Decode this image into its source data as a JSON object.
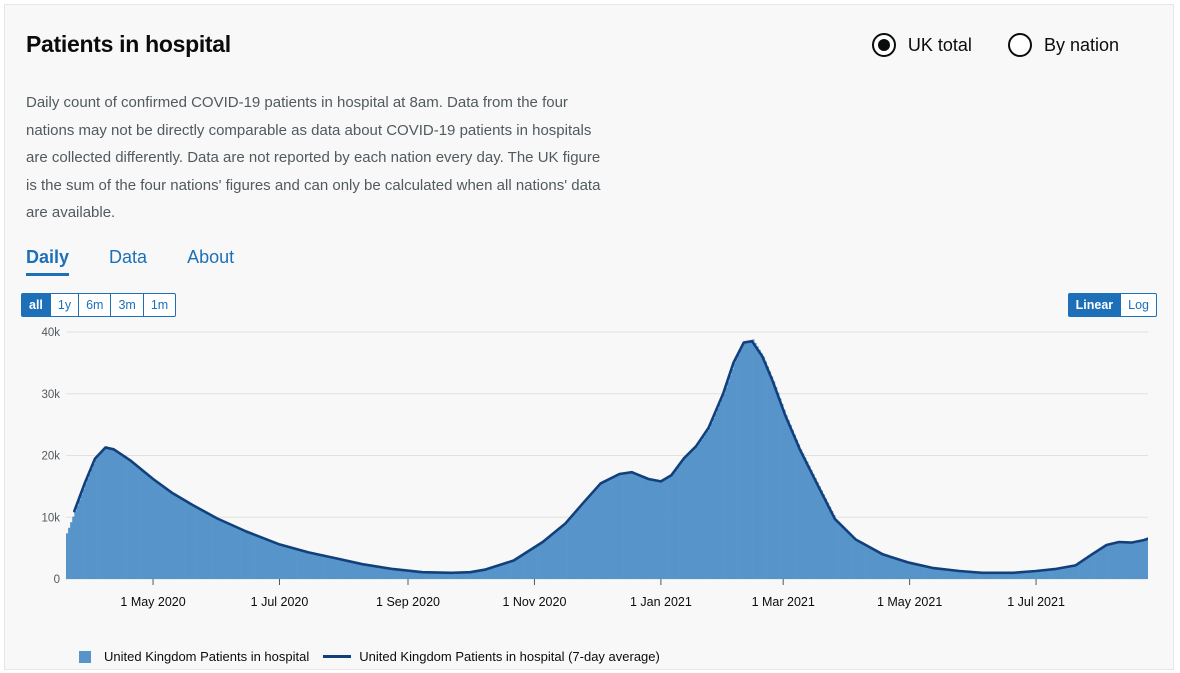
{
  "header": {
    "title": "Patients in hospital"
  },
  "radios": [
    {
      "label": "UK total",
      "selected": true
    },
    {
      "label": "By nation",
      "selected": false
    }
  ],
  "description": "Daily count of confirmed COVID-19 patients in hospital at 8am. Data from the four nations may not be directly comparable as data about COVID-19 patients in hospitals are collected differently. Data are not reported by each nation every day. The UK figure is the sum of the four nations' figures and can only be calculated when all nations' data are available.",
  "tabs": [
    {
      "label": "Daily",
      "active": true
    },
    {
      "label": "Data",
      "active": false
    },
    {
      "label": "About",
      "active": false
    }
  ],
  "range_buttons": [
    {
      "label": "all",
      "active": true
    },
    {
      "label": "1y",
      "active": false
    },
    {
      "label": "6m",
      "active": false
    },
    {
      "label": "3m",
      "active": false
    },
    {
      "label": "1m",
      "active": false
    }
  ],
  "scale_buttons": [
    {
      "label": "Linear",
      "active": true
    },
    {
      "label": "Log",
      "active": false
    }
  ],
  "colors": {
    "bar": "#5694ca",
    "line": "#12407c",
    "accent": "#1d70b8"
  },
  "chart_data": {
    "type": "bar",
    "title": "",
    "xlabel": "",
    "ylabel": "",
    "x_range": [
      "2020-03-20",
      "2021-08-24"
    ],
    "ylim": [
      0,
      40000
    ],
    "y_ticks": [
      {
        "value": 0,
        "label": "0"
      },
      {
        "value": 10000,
        "label": "10k"
      },
      {
        "value": 20000,
        "label": "20k"
      },
      {
        "value": 30000,
        "label": "30k"
      },
      {
        "value": 40000,
        "label": "40k"
      }
    ],
    "x_ticks": [
      {
        "date": "2020-05-01",
        "label": "1 May 2020"
      },
      {
        "date": "2020-07-01",
        "label": "1 Jul 2020"
      },
      {
        "date": "2020-09-01",
        "label": "1 Sep 2020"
      },
      {
        "date": "2020-11-01",
        "label": "1 Nov 2020"
      },
      {
        "date": "2021-01-01",
        "label": "1 Jan 2021"
      },
      {
        "date": "2021-03-01",
        "label": "1 Mar 2021"
      },
      {
        "date": "2021-05-01",
        "label": "1 May 2021"
      },
      {
        "date": "2021-07-01",
        "label": "1 Jul 2021"
      }
    ],
    "grid": true,
    "legend_position": "bottom-left",
    "series": [
      {
        "name": "United Kingdom Patients in hospital",
        "type": "bar",
        "points": [
          [
            "2020-03-20",
            7400
          ],
          [
            "2020-03-24",
            11000
          ],
          [
            "2020-03-29",
            15500
          ],
          [
            "2020-04-03",
            19500
          ],
          [
            "2020-04-08",
            21500
          ],
          [
            "2020-04-12",
            21000
          ],
          [
            "2020-04-20",
            19200
          ],
          [
            "2020-05-01",
            16200
          ],
          [
            "2020-05-10",
            14000
          ],
          [
            "2020-05-20",
            12000
          ],
          [
            "2020-06-01",
            9800
          ],
          [
            "2020-06-15",
            7700
          ],
          [
            "2020-07-01",
            5600
          ],
          [
            "2020-07-15",
            4300
          ],
          [
            "2020-07-29",
            3300
          ],
          [
            "2020-08-10",
            2400
          ],
          [
            "2020-08-25",
            1600
          ],
          [
            "2020-09-08",
            1100
          ],
          [
            "2020-09-22",
            1000
          ],
          [
            "2020-10-01",
            1100
          ],
          [
            "2020-10-08",
            1500
          ],
          [
            "2020-10-22",
            3000
          ],
          [
            "2020-11-05",
            6000
          ],
          [
            "2020-11-16",
            9000
          ],
          [
            "2020-11-25",
            12500
          ],
          [
            "2020-12-03",
            15500
          ],
          [
            "2020-12-12",
            17000
          ],
          [
            "2020-12-18",
            17300
          ],
          [
            "2020-12-26",
            16200
          ],
          [
            "2021-01-01",
            15800
          ],
          [
            "2021-01-06",
            16800
          ],
          [
            "2021-01-12",
            19500
          ],
          [
            "2021-01-18",
            21500
          ],
          [
            "2021-01-24",
            24500
          ],
          [
            "2021-01-31",
            30000
          ],
          [
            "2021-02-05",
            35000
          ],
          [
            "2021-02-10",
            38500
          ],
          [
            "2021-02-14",
            38800
          ],
          [
            "2021-02-19",
            36000
          ],
          [
            "2021-02-24",
            32000
          ],
          [
            "2021-03-02",
            26500
          ],
          [
            "2021-03-09",
            21000
          ],
          [
            "2021-03-18",
            15000
          ],
          [
            "2021-03-26",
            9700
          ],
          [
            "2021-04-05",
            6400
          ],
          [
            "2021-04-18",
            4000
          ],
          [
            "2021-04-30",
            2700
          ],
          [
            "2021-05-12",
            1800
          ],
          [
            "2021-05-25",
            1300
          ],
          [
            "2021-06-05",
            1000
          ],
          [
            "2021-06-20",
            1000
          ],
          [
            "2021-07-01",
            1300
          ],
          [
            "2021-07-10",
            1600
          ],
          [
            "2021-07-20",
            2200
          ],
          [
            "2021-07-28",
            4000
          ],
          [
            "2021-08-04",
            5500
          ],
          [
            "2021-08-10",
            6100
          ],
          [
            "2021-08-16",
            6000
          ],
          [
            "2021-08-22",
            6500
          ],
          [
            "2021-08-28",
            7200
          ],
          [
            "2021-09-05",
            7700
          ],
          [
            "2021-09-12",
            8000
          ]
        ]
      },
      {
        "name": "United Kingdom Patients in hospital (7-day average)",
        "type": "line",
        "points": [
          [
            "2020-03-24",
            11000
          ],
          [
            "2020-03-29",
            15500
          ],
          [
            "2020-04-03",
            19500
          ],
          [
            "2020-04-08",
            21300
          ],
          [
            "2020-04-12",
            21000
          ],
          [
            "2020-04-20",
            19200
          ],
          [
            "2020-05-01",
            16200
          ],
          [
            "2020-05-10",
            14000
          ],
          [
            "2020-05-20",
            12000
          ],
          [
            "2020-06-01",
            9800
          ],
          [
            "2020-06-15",
            7700
          ],
          [
            "2020-07-01",
            5600
          ],
          [
            "2020-07-15",
            4300
          ],
          [
            "2020-07-29",
            3300
          ],
          [
            "2020-08-10",
            2400
          ],
          [
            "2020-08-25",
            1600
          ],
          [
            "2020-09-08",
            1100
          ],
          [
            "2020-09-22",
            1000
          ],
          [
            "2020-10-01",
            1100
          ],
          [
            "2020-10-08",
            1500
          ],
          [
            "2020-10-22",
            3000
          ],
          [
            "2020-11-05",
            6000
          ],
          [
            "2020-11-16",
            9000
          ],
          [
            "2020-11-25",
            12500
          ],
          [
            "2020-12-03",
            15500
          ],
          [
            "2020-12-12",
            17000
          ],
          [
            "2020-12-18",
            17300
          ],
          [
            "2020-12-26",
            16200
          ],
          [
            "2021-01-01",
            15800
          ],
          [
            "2021-01-06",
            16800
          ],
          [
            "2021-01-12",
            19500
          ],
          [
            "2021-01-18",
            21500
          ],
          [
            "2021-01-24",
            24500
          ],
          [
            "2021-01-31",
            30000
          ],
          [
            "2021-02-05",
            35000
          ],
          [
            "2021-02-10",
            38300
          ],
          [
            "2021-02-14",
            38500
          ],
          [
            "2021-02-19",
            36000
          ],
          [
            "2021-02-24",
            32000
          ],
          [
            "2021-03-02",
            26500
          ],
          [
            "2021-03-09",
            21000
          ],
          [
            "2021-03-18",
            15000
          ],
          [
            "2021-03-26",
            9700
          ],
          [
            "2021-04-05",
            6400
          ],
          [
            "2021-04-18",
            4000
          ],
          [
            "2021-04-30",
            2700
          ],
          [
            "2021-05-12",
            1800
          ],
          [
            "2021-05-25",
            1300
          ],
          [
            "2021-06-05",
            1000
          ],
          [
            "2021-06-20",
            1000
          ],
          [
            "2021-07-01",
            1300
          ],
          [
            "2021-07-10",
            1600
          ],
          [
            "2021-07-20",
            2200
          ],
          [
            "2021-07-28",
            4000
          ],
          [
            "2021-08-04",
            5500
          ],
          [
            "2021-08-10",
            6000
          ],
          [
            "2021-08-16",
            5900
          ],
          [
            "2021-08-22",
            6300
          ],
          [
            "2021-08-28",
            7000
          ],
          [
            "2021-09-05",
            7500
          ],
          [
            "2021-09-12",
            7900
          ]
        ]
      }
    ]
  }
}
